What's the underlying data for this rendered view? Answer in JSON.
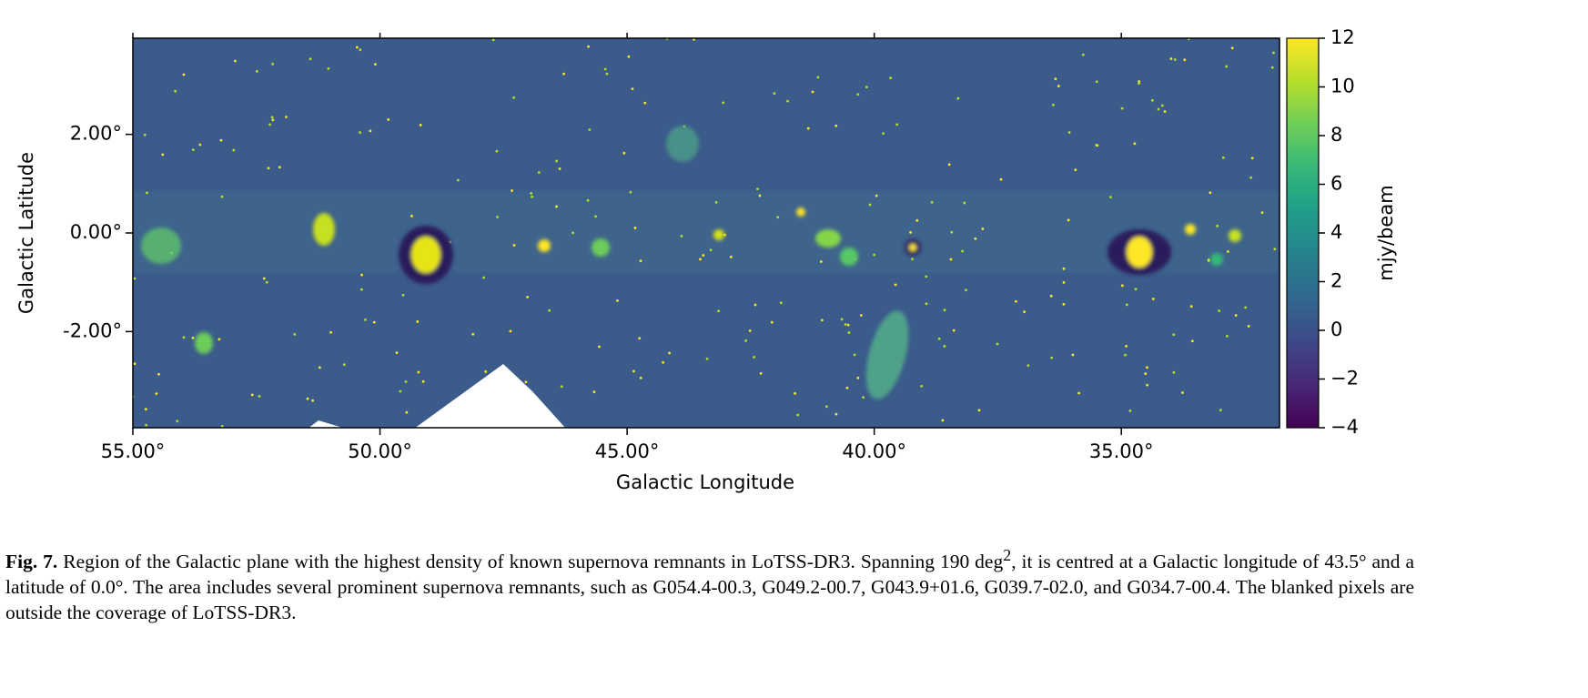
{
  "chart_data": {
    "type": "image",
    "x_label": "Galactic Longitude",
    "y_label": "Galactic Latitude",
    "xlim": [
      55,
      31.8
    ],
    "ylim": [
      -3.95,
      3.95
    ],
    "xticks": [
      {
        "value": 55,
        "label": "55.00°"
      },
      {
        "value": 50,
        "label": "50.00°"
      },
      {
        "value": 45,
        "label": "45.00°"
      },
      {
        "value": 40,
        "label": "40.00°"
      },
      {
        "value": 35,
        "label": "35.00°"
      }
    ],
    "yticks": [
      {
        "value": 2,
        "label": "2.00°"
      },
      {
        "value": 0,
        "label": "0.00°"
      },
      {
        "value": -2,
        "label": "-2.00°"
      }
    ],
    "colorbar": {
      "label": "mjy/beam",
      "colormap": "viridis",
      "lim": [
        -4,
        12
      ],
      "ticks": [
        12,
        10,
        8,
        6,
        4,
        2,
        0,
        {
          "value": -2,
          "label": "−2"
        },
        {
          "value": -4,
          "label": "−4"
        }
      ]
    }
  },
  "caption": {
    "label": "Fig. 7.",
    "text_before_sup": " Region of the Galactic plane with the highest density of known supernova remnants in LoTSS-DR3. Spanning 190 deg",
    "sup": "2",
    "text_after_sup": ", it is centred at a Galactic longitude of 43.5° and a latitude of 0.0°. The area includes several prominent supernova remnants, such as G054.4-00.3, G049.2-00.7, G043.9+01.6, G039.7-02.0, and G034.7-00.4. The blanked pixels are outside the coverage of LoTSS-DR3."
  }
}
